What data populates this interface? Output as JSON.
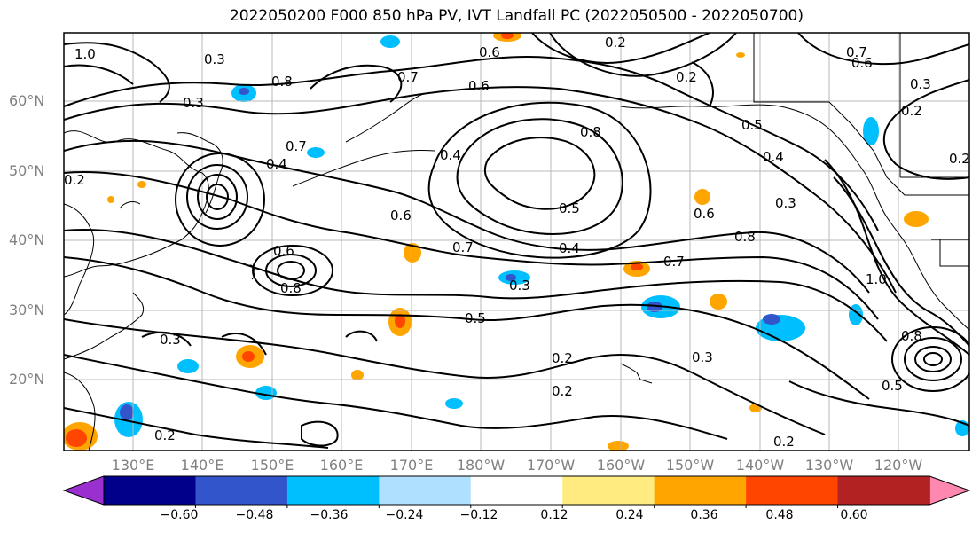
{
  "title": "2022050200 F000 850 hPa PV, IVT Landfall PC (2022050500 - 2022050700)",
  "lat_labels": [
    "60°N",
    "50°N",
    "40°N",
    "30°N",
    "20°N"
  ],
  "lon_labels": [
    "130°E",
    "140°E",
    "150°E",
    "160°E",
    "170°E",
    "180°W",
    "170°W",
    "160°W",
    "150°W",
    "140°W",
    "130°W",
    "120°W"
  ],
  "colorbar": {
    "colors": [
      "#9b30d0",
      "#00008b",
      "#3355cc",
      "#00bfff",
      "#b0e0ff",
      "#ffffff",
      "#ffeb80",
      "#ffa500",
      "#ff4500",
      "#b22222",
      "#ff88b0"
    ],
    "tick_labels": [
      "−0.60",
      "−0.48",
      "−0.36",
      "−0.24",
      "−0.12",
      "0.12",
      "0.24",
      "0.36",
      "0.48",
      "0.60"
    ]
  },
  "contour_labels": [
    "1.0",
    "0.3",
    "0.3",
    "0.8",
    "0.7",
    "0.6",
    "0.6",
    "0.2",
    "0.2",
    "0.3",
    "0.4",
    "0.7",
    "0.4",
    "0.8",
    "0.5",
    "0.4",
    "0.3",
    "0.2",
    "0.6",
    "0.5",
    "0.6",
    "0.7",
    "0.8",
    "0.4",
    "0.7",
    "0.6",
    "0.8",
    "0.3",
    "0.5",
    "0.2",
    "0.3",
    "0.2",
    "0.3",
    "0.2",
    "0.2",
    "0.2",
    "1.0",
    "0.8",
    "0.5",
    "0.2",
    "0.7",
    "0.6"
  ]
}
